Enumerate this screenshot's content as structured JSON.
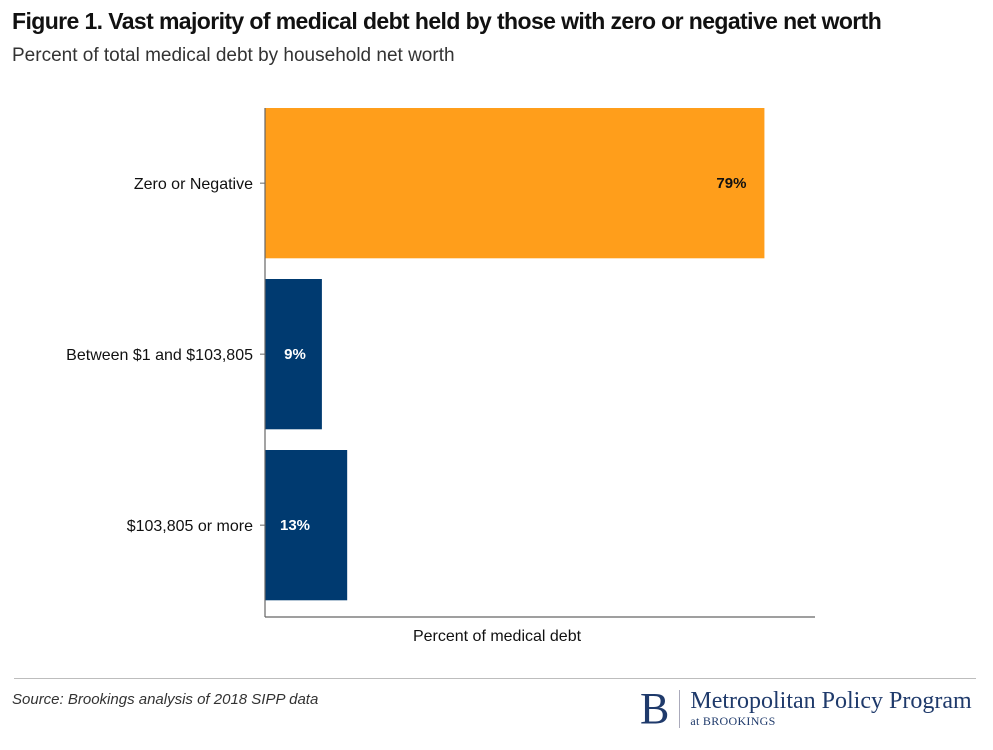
{
  "header": {
    "title": "Figure 1. Vast majority of medical debt held by those with zero or negative net worth",
    "subtitle": "Percent of total medical debt by household net worth"
  },
  "footer": {
    "source": "Source: Brookings analysis of 2018 SIPP data",
    "logo_letter": "B",
    "logo_name": "Metropolitan Policy Program",
    "logo_sub": "at BROOKINGS"
  },
  "colors": {
    "highlight": "#FF9E1B",
    "primary": "#003A70",
    "label_on_highlight": "#111111",
    "label_on_primary": "#FFFFFF",
    "logo": "#1F3A6B"
  },
  "chart_data": {
    "type": "bar",
    "orientation": "horizontal",
    "title": "Figure 1. Vast majority of medical debt held by those with zero or negative net worth",
    "subtitle": "Percent of total medical debt by household net worth",
    "xlabel": "Percent of medical debt",
    "ylabel": "",
    "categories": [
      "Zero or Negative",
      "Between $1 and $103,805",
      "$103,805 or more"
    ],
    "values": [
      79,
      9,
      13
    ],
    "data_labels": [
      "79%",
      "9%",
      "13%"
    ],
    "bar_colors": [
      "#FF9E1B",
      "#003A70",
      "#003A70"
    ],
    "xlim": [
      0,
      87
    ],
    "grid": false,
    "legend": "none"
  }
}
